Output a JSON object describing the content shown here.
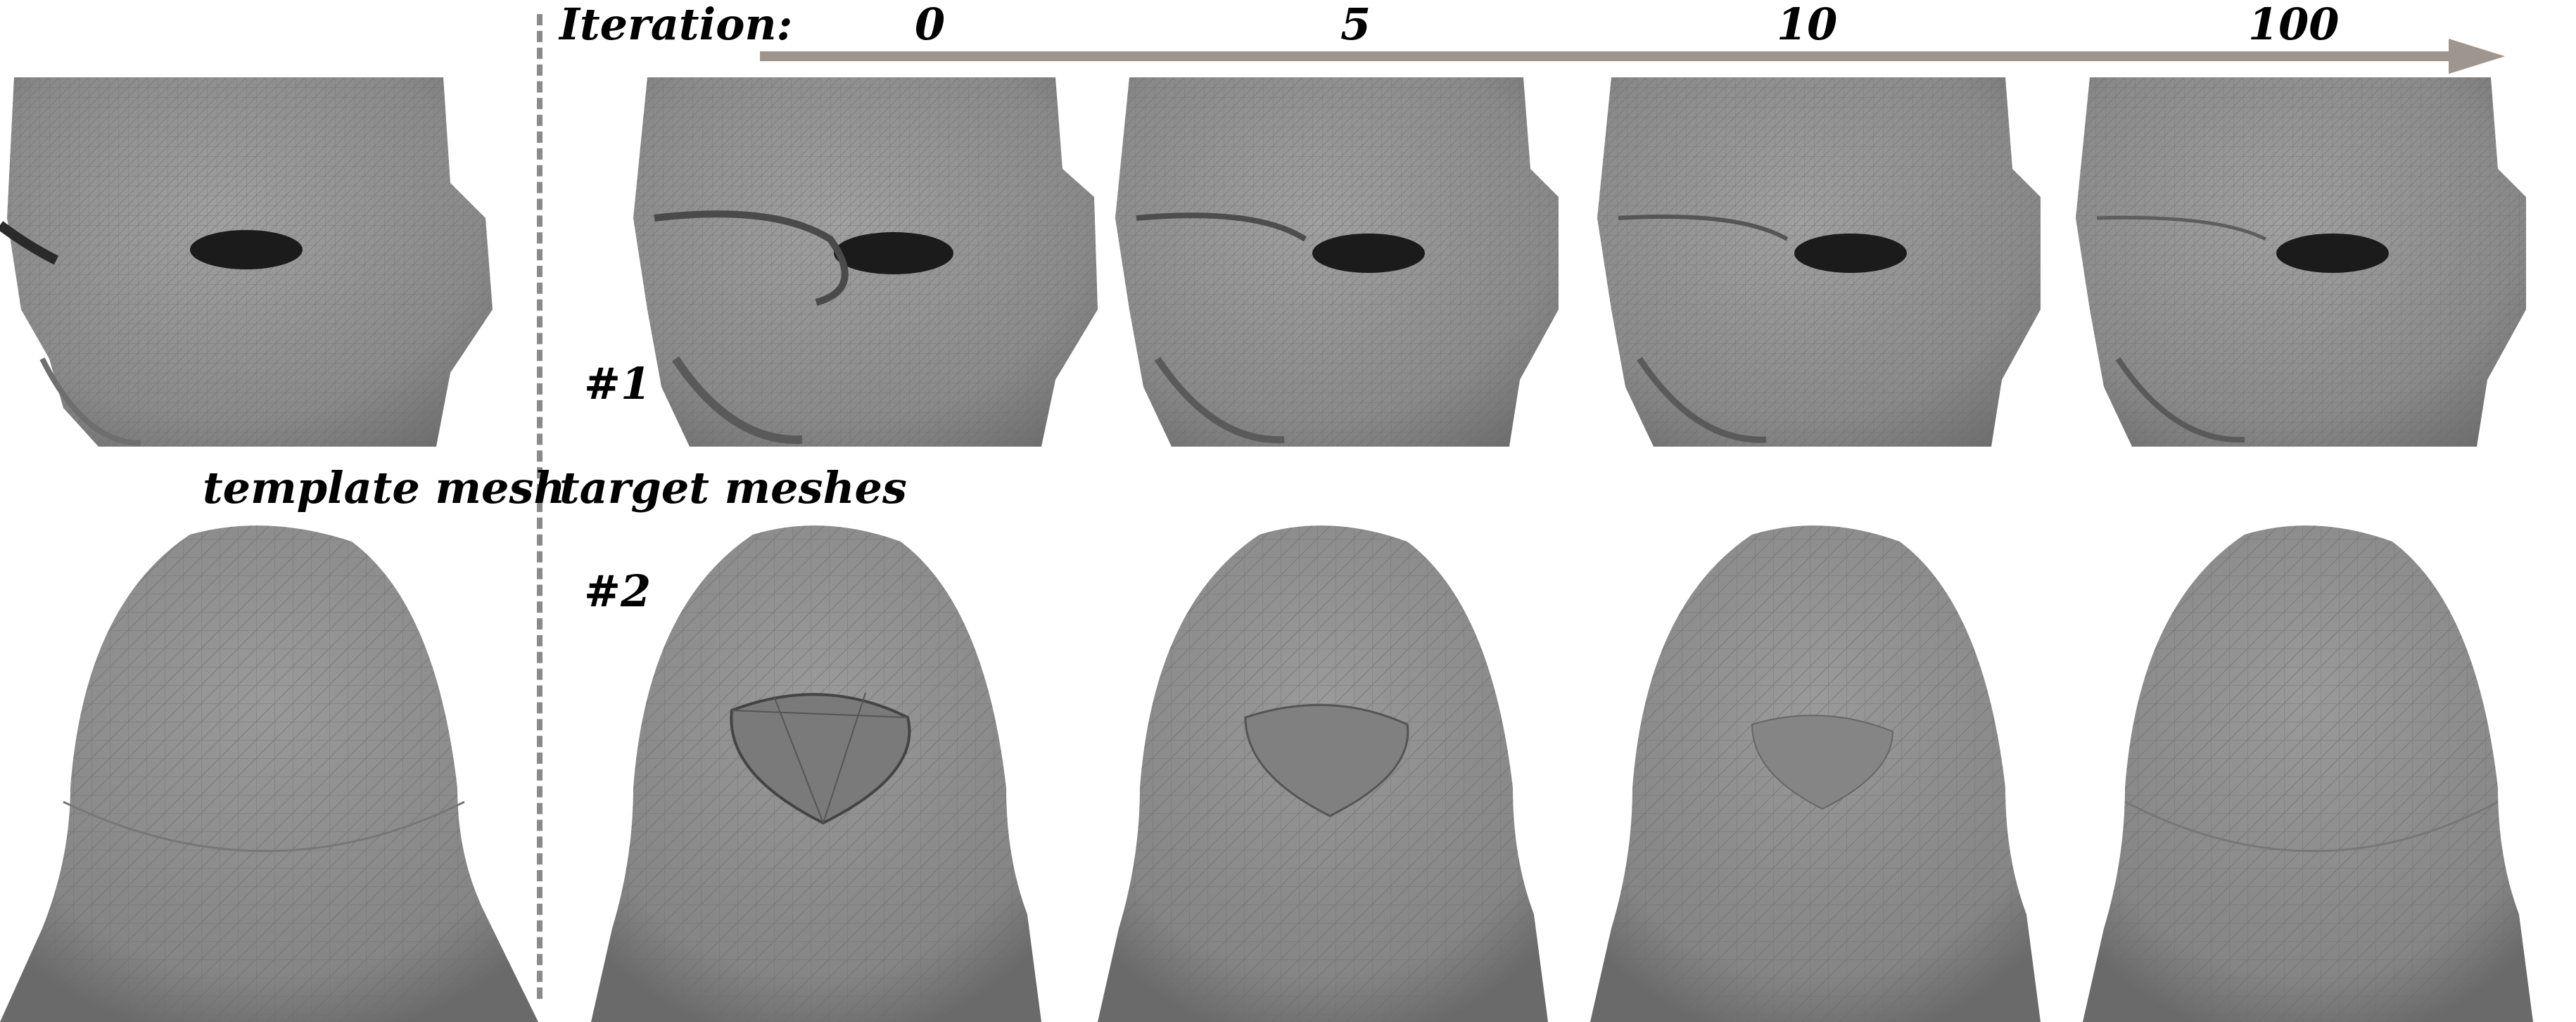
{
  "header": {
    "iteration_label": "Iteration:",
    "iterations": [
      "0",
      "5",
      "10",
      "100"
    ]
  },
  "labels": {
    "template": "template mesh",
    "targets": "target meshes",
    "row1": "#1",
    "row2": "#2"
  },
  "colors": {
    "mesh": "#8c8c8c",
    "wire": "#5a5a5a",
    "arrow": "#9e958f",
    "divider": "#8a8a8a"
  }
}
